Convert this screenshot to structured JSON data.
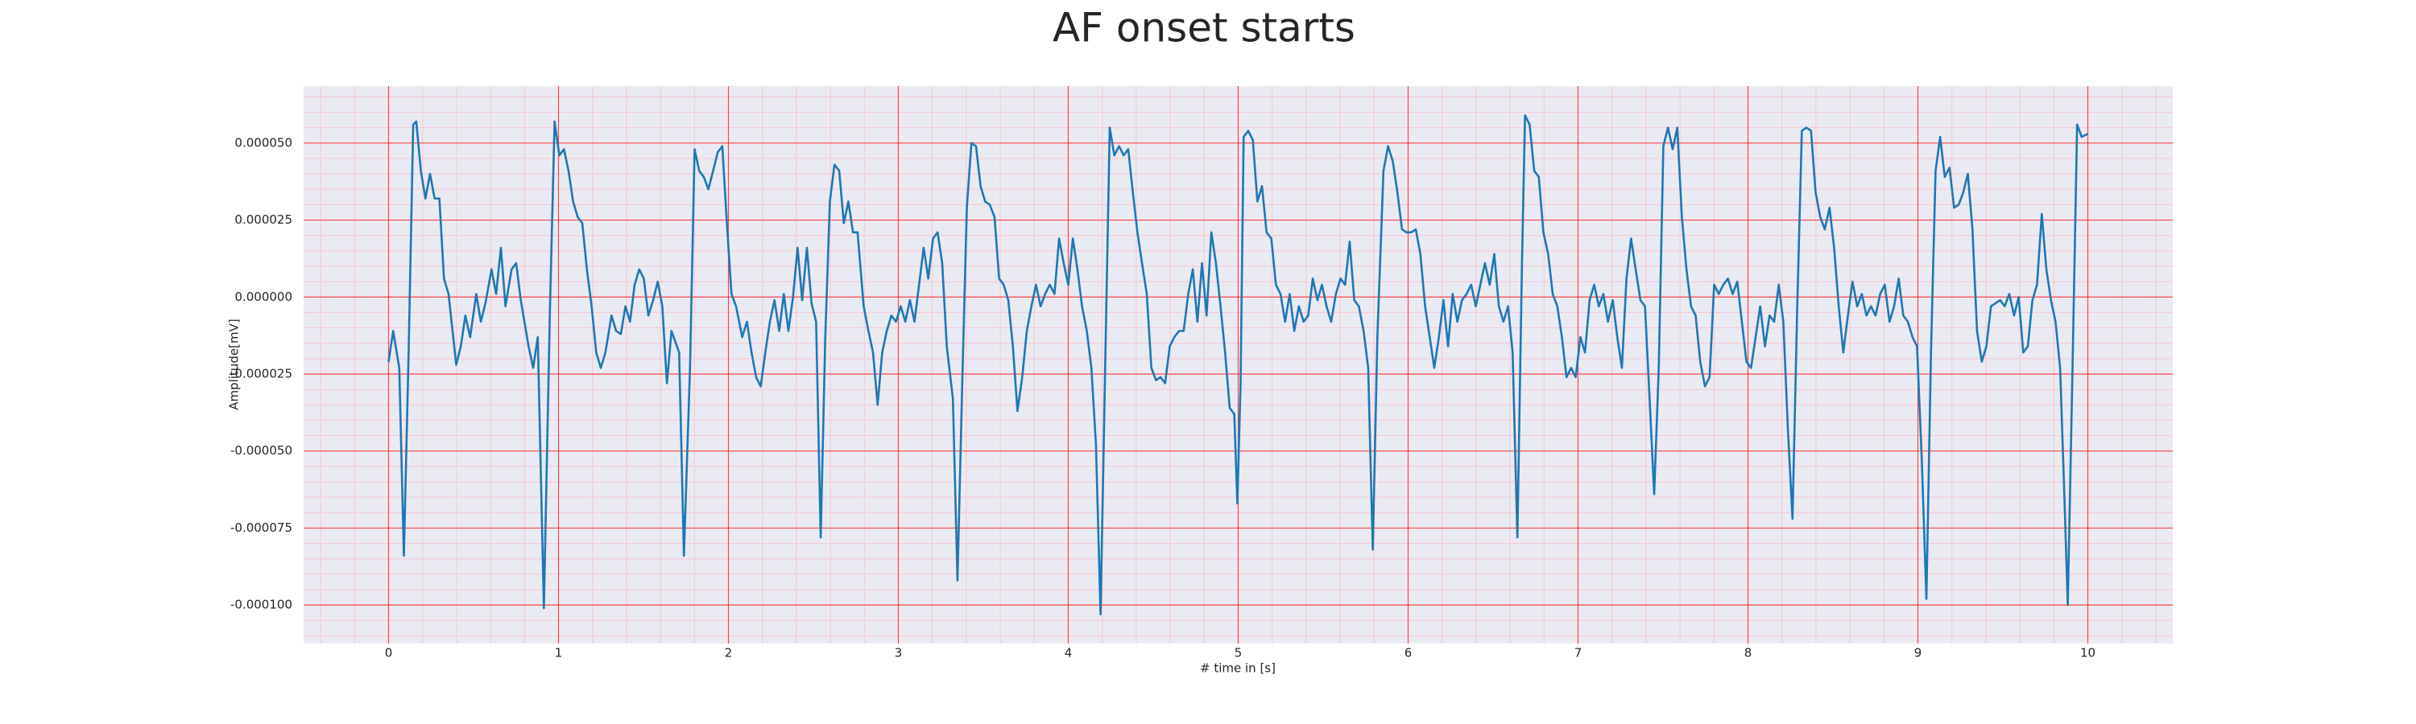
{
  "chart_data": {
    "type": "line",
    "title": "AF onset starts",
    "x_label": "# time in [s]",
    "y_label": "Amplitude[mV]",
    "color": "#1f77b4",
    "grid": true,
    "minor_grid": true,
    "xlim": [
      -0.5,
      10.5
    ],
    "xticks": [
      0,
      1,
      2,
      3,
      4,
      5,
      6,
      7,
      8,
      9,
      10
    ],
    "ylim": [
      -0.0001125,
      6.85e-05
    ],
    "yticks": [
      {
        "value": -0.0001,
        "label": "-0.000100"
      },
      {
        "value": -7.5e-05,
        "label": "-0.000075"
      },
      {
        "value": -5e-05,
        "label": "-0.000050"
      },
      {
        "value": -2.5e-05,
        "label": "-0.000025"
      },
      {
        "value": 0,
        "label": "0.000000"
      },
      {
        "value": 2.5e-05,
        "label": "0.000025"
      },
      {
        "value": 5e-05,
        "label": "0.000050"
      }
    ],
    "x": [
      0,
      0.027,
      0.063,
      0.09,
      0.118,
      0.145,
      0.163,
      0.19,
      0.217,
      0.244,
      0.271,
      0.299,
      0.326,
      0.353,
      0.398,
      0.425,
      0.452,
      0.48,
      0.516,
      0.543,
      0.57,
      0.606,
      0.633,
      0.661,
      0.688,
      0.724,
      0.751,
      0.778,
      0.824,
      0.851,
      0.878,
      0.914,
      0.95,
      0.977,
      1.005,
      1.032,
      1.059,
      1.086,
      1.113,
      1.14,
      1.167,
      1.195,
      1.222,
      1.249,
      1.276,
      1.312,
      1.339,
      1.367,
      1.394,
      1.421,
      1.448,
      1.475,
      1.502,
      1.529,
      1.557,
      1.584,
      1.611,
      1.638,
      1.665,
      1.71,
      1.738,
      1.774,
      1.801,
      1.828,
      1.855,
      1.882,
      1.91,
      1.937,
      1.964,
      1.991,
      2.018,
      2.045,
      2.081,
      2.109,
      2.136,
      2.163,
      2.19,
      2.217,
      2.244,
      2.271,
      2.299,
      2.326,
      2.353,
      2.38,
      2.407,
      2.434,
      2.462,
      2.489,
      2.516,
      2.543,
      2.57,
      2.597,
      2.624,
      2.652,
      2.679,
      2.706,
      2.733,
      2.76,
      2.796,
      2.824,
      2.851,
      2.878,
      2.905,
      2.932,
      2.959,
      2.986,
      3.014,
      3.041,
      3.068,
      3.095,
      3.122,
      3.149,
      3.176,
      3.204,
      3.231,
      3.258,
      3.285,
      3.321,
      3.348,
      3.376,
      3.403,
      3.43,
      3.457,
      3.484,
      3.511,
      3.538,
      3.566,
      3.593,
      3.62,
      3.647,
      3.674,
      3.701,
      3.729,
      3.756,
      3.783,
      3.81,
      3.837,
      3.864,
      3.891,
      3.919,
      3.946,
      3.973,
      4.0,
      4.027,
      4.054,
      4.081,
      4.109,
      4.136,
      4.163,
      4.19,
      4.217,
      4.244,
      4.271,
      4.299,
      4.326,
      4.353,
      4.38,
      4.407,
      4.434,
      4.462,
      4.489,
      4.516,
      4.543,
      4.57,
      4.597,
      4.624,
      4.652,
      4.679,
      4.706,
      4.733,
      4.76,
      4.787,
      4.814,
      4.842,
      4.869,
      4.896,
      4.923,
      4.95,
      4.977,
      4.995,
      5.014,
      5.032,
      5.059,
      5.086,
      5.113,
      5.14,
      5.167,
      5.195,
      5.222,
      5.249,
      5.276,
      5.303,
      5.33,
      5.357,
      5.385,
      5.412,
      5.439,
      5.466,
      5.493,
      5.52,
      5.547,
      5.575,
      5.602,
      5.629,
      5.656,
      5.683,
      5.71,
      5.738,
      5.765,
      5.792,
      5.819,
      5.855,
      5.882,
      5.91,
      5.937,
      5.964,
      5.991,
      6.018,
      6.045,
      6.072,
      6.1,
      6.127,
      6.154,
      6.181,
      6.208,
      6.235,
      6.262,
      6.29,
      6.317,
      6.344,
      6.371,
      6.398,
      6.425,
      6.452,
      6.48,
      6.507,
      6.534,
      6.561,
      6.588,
      6.615,
      6.643,
      6.67,
      6.688,
      6.715,
      6.742,
      6.769,
      6.796,
      6.824,
      6.851,
      6.878,
      6.905,
      6.932,
      6.959,
      6.986,
      7.014,
      7.041,
      7.068,
      7.095,
      7.122,
      7.149,
      7.176,
      7.204,
      7.231,
      7.258,
      7.285,
      7.312,
      7.339,
      7.367,
      7.394,
      7.421,
      7.448,
      7.475,
      7.502,
      7.529,
      7.557,
      7.584,
      7.611,
      7.638,
      7.665,
      7.692,
      7.719,
      7.747,
      7.774,
      7.801,
      7.828,
      7.855,
      7.882,
      7.91,
      7.937,
      7.964,
      7.991,
      8.018,
      8.045,
      8.072,
      8.1,
      8.127,
      8.154,
      8.181,
      8.208,
      8.235,
      8.262,
      8.29,
      8.317,
      8.344,
      8.371,
      8.398,
      8.425,
      8.452,
      8.48,
      8.507,
      8.534,
      8.561,
      8.588,
      8.615,
      8.643,
      8.67,
      8.697,
      8.724,
      8.751,
      8.778,
      8.805,
      8.833,
      8.86,
      8.887,
      8.914,
      8.941,
      8.968,
      8.995,
      9.023,
      9.05,
      9.077,
      9.104,
      9.131,
      9.158,
      9.186,
      9.213,
      9.24,
      9.267,
      9.294,
      9.321,
      9.348,
      9.376,
      9.403,
      9.43,
      9.457,
      9.484,
      9.511,
      9.538,
      9.566,
      9.593,
      9.62,
      9.647,
      9.674,
      9.701,
      9.729,
      9.756,
      9.783,
      9.81,
      9.837,
      9.864,
      9.882,
      9.91,
      9.937,
      9.964,
      10.0
    ],
    "values": [
      -2.1e-05,
      -1.1e-05,
      -2.3e-05,
      -8.4e-05,
      -1.8e-05,
      5.6e-05,
      5.7e-05,
      4.1e-05,
      3.2e-05,
      4e-05,
      3.2e-05,
      3.2e-05,
      6e-06,
      1e-06,
      -2.2e-05,
      -1.6e-05,
      -6e-06,
      -1.3e-05,
      1e-06,
      -8e-06,
      -2e-06,
      9e-06,
      1e-06,
      1.6e-05,
      -3e-06,
      9e-06,
      1.1e-05,
      -1e-06,
      -1.6e-05,
      -2.3e-05,
      -1.3e-05,
      -0.000101,
      -3e-06,
      5.7e-05,
      4.6e-05,
      4.8e-05,
      4.1e-05,
      3.1e-05,
      2.6e-05,
      2.4e-05,
      9e-06,
      -3e-06,
      -1.8e-05,
      -2.3e-05,
      -1.8e-05,
      -6e-06,
      -1.1e-05,
      -1.2e-05,
      -3e-06,
      -8e-06,
      4e-06,
      9e-06,
      6e-06,
      -6e-06,
      -1e-06,
      5e-06,
      -3e-06,
      -2.8e-05,
      -1.1e-05,
      -1.8e-05,
      -8.4e-05,
      -2.3e-05,
      4.8e-05,
      4.1e-05,
      3.9e-05,
      3.5e-05,
      4.1e-05,
      4.7e-05,
      4.9e-05,
      2.4e-05,
      1e-06,
      -3e-06,
      -1.3e-05,
      -8e-06,
      -1.8e-05,
      -2.6e-05,
      -2.9e-05,
      -1.8e-05,
      -8e-06,
      -1e-06,
      -1.1e-05,
      1e-06,
      -1.1e-05,
      0,
      1.6e-05,
      -1e-06,
      1.6e-05,
      -2e-06,
      -8e-06,
      -7.8e-05,
      -1.3e-05,
      3.1e-05,
      4.3e-05,
      4.1e-05,
      2.4e-05,
      3.1e-05,
      2.1e-05,
      2.1e-05,
      -3e-06,
      -1.1e-05,
      -1.8e-05,
      -3.5e-05,
      -1.8e-05,
      -1.1e-05,
      -6e-06,
      -8e-06,
      -3e-06,
      -8e-06,
      -1e-06,
      -8e-06,
      4e-06,
      1.6e-05,
      6e-06,
      1.9e-05,
      2.1e-05,
      1.1e-05,
      -1.6e-05,
      -3.3e-05,
      -9.2e-05,
      -2.8e-05,
      2.9e-05,
      5e-05,
      4.9e-05,
      3.6e-05,
      3.1e-05,
      3e-05,
      2.6e-05,
      6e-06,
      4e-06,
      -1e-06,
      -1.6e-05,
      -3.7e-05,
      -2.6e-05,
      -1.1e-05,
      -3e-06,
      4e-06,
      -3e-06,
      1e-06,
      4e-06,
      1e-06,
      1.9e-05,
      1.1e-05,
      4e-06,
      1.9e-05,
      9e-06,
      -3e-06,
      -1.1e-05,
      -2.3e-05,
      -4.8e-05,
      -0.000103,
      -2.3e-05,
      5.5e-05,
      4.6e-05,
      4.9e-05,
      4.6e-05,
      4.8e-05,
      3.4e-05,
      2.1e-05,
      1.1e-05,
      1e-06,
      -2.3e-05,
      -2.7e-05,
      -2.6e-05,
      -2.8e-05,
      -1.6e-05,
      -1.3e-05,
      -1.1e-05,
      -1.1e-05,
      1e-06,
      9e-06,
      -8e-06,
      1.1e-05,
      -6e-06,
      2.1e-05,
      1.1e-05,
      -3e-06,
      -1.8e-05,
      -3.6e-05,
      -3.8e-05,
      -6.7e-05,
      -2.8e-05,
      5.2e-05,
      5.4e-05,
      5.1e-05,
      3.1e-05,
      3.6e-05,
      2.1e-05,
      1.9e-05,
      4e-06,
      1e-06,
      -8e-06,
      1e-06,
      -1.1e-05,
      -3e-06,
      -8e-06,
      -6e-06,
      6e-06,
      -1e-06,
      4e-06,
      -3e-06,
      -8e-06,
      1e-06,
      6e-06,
      4e-06,
      1.8e-05,
      -1e-06,
      -3e-06,
      -1.1e-05,
      -2.3e-05,
      -8.2e-05,
      -1.3e-05,
      4.1e-05,
      4.9e-05,
      4.4e-05,
      3.4e-05,
      2.2e-05,
      2.1e-05,
      2.1e-05,
      2.2e-05,
      1.4e-05,
      -3e-06,
      -1.3e-05,
      -2.3e-05,
      -1.3e-05,
      -1e-06,
      -1.6e-05,
      1e-06,
      -8e-06,
      -1e-06,
      1e-06,
      4e-06,
      -3e-06,
      4e-06,
      1.1e-05,
      4e-06,
      1.4e-05,
      -3e-06,
      -8e-06,
      -3e-06,
      -1.8e-05,
      -7.8e-05,
      1.1e-05,
      5.9e-05,
      5.6e-05,
      4.1e-05,
      3.9e-05,
      2.1e-05,
      1.4e-05,
      1e-06,
      -3e-06,
      -1.3e-05,
      -2.6e-05,
      -2.3e-05,
      -2.6e-05,
      -1.3e-05,
      -1.8e-05,
      -1e-06,
      4e-06,
      -3e-06,
      1e-06,
      -8e-06,
      -1e-06,
      -1.3e-05,
      -2.3e-05,
      6e-06,
      1.9e-05,
      9e-06,
      -1e-06,
      -3e-06,
      -3.3e-05,
      -6.4e-05,
      -2.3e-05,
      4.9e-05,
      5.5e-05,
      4.8e-05,
      5.5e-05,
      2.6e-05,
      9e-06,
      -3e-06,
      -6e-06,
      -2.1e-05,
      -2.9e-05,
      -2.6e-05,
      4e-06,
      1e-06,
      4e-06,
      6e-06,
      1e-06,
      5e-06,
      -8e-06,
      -2.1e-05,
      -2.3e-05,
      -1.3e-05,
      -3e-06,
      -1.6e-05,
      -6e-06,
      -8e-06,
      4e-06,
      -8e-06,
      -4.3e-05,
      -7.2e-05,
      -3e-06,
      5.4e-05,
      5.5e-05,
      5.4e-05,
      3.4e-05,
      2.6e-05,
      2.2e-05,
      2.9e-05,
      1.6e-05,
      -3e-06,
      -1.8e-05,
      -6e-06,
      5e-06,
      -3e-06,
      1e-06,
      -6e-06,
      -3e-06,
      -6e-06,
      1e-06,
      4e-06,
      -8e-06,
      -3e-06,
      6e-06,
      -6e-06,
      -8e-06,
      -1.3e-05,
      -1.6e-05,
      -5.3e-05,
      -9.8e-05,
      -1.8e-05,
      4.1e-05,
      5.2e-05,
      3.9e-05,
      4.2e-05,
      2.9e-05,
      3e-05,
      3.4e-05,
      4e-05,
      2.2e-05,
      -1.1e-05,
      -2.1e-05,
      -1.6e-05,
      -3e-06,
      -2e-06,
      -1e-06,
      -3e-06,
      1e-06,
      -6e-06,
      0,
      -1.8e-05,
      -1.6e-05,
      -1e-06,
      4e-06,
      2.7e-05,
      9e-06,
      -1e-06,
      -8e-06,
      -2.3e-05,
      -6.8e-05,
      -0.0001,
      -2.3e-05,
      5.6e-05,
      5.2e-05,
      5.3e-05
    ]
  }
}
